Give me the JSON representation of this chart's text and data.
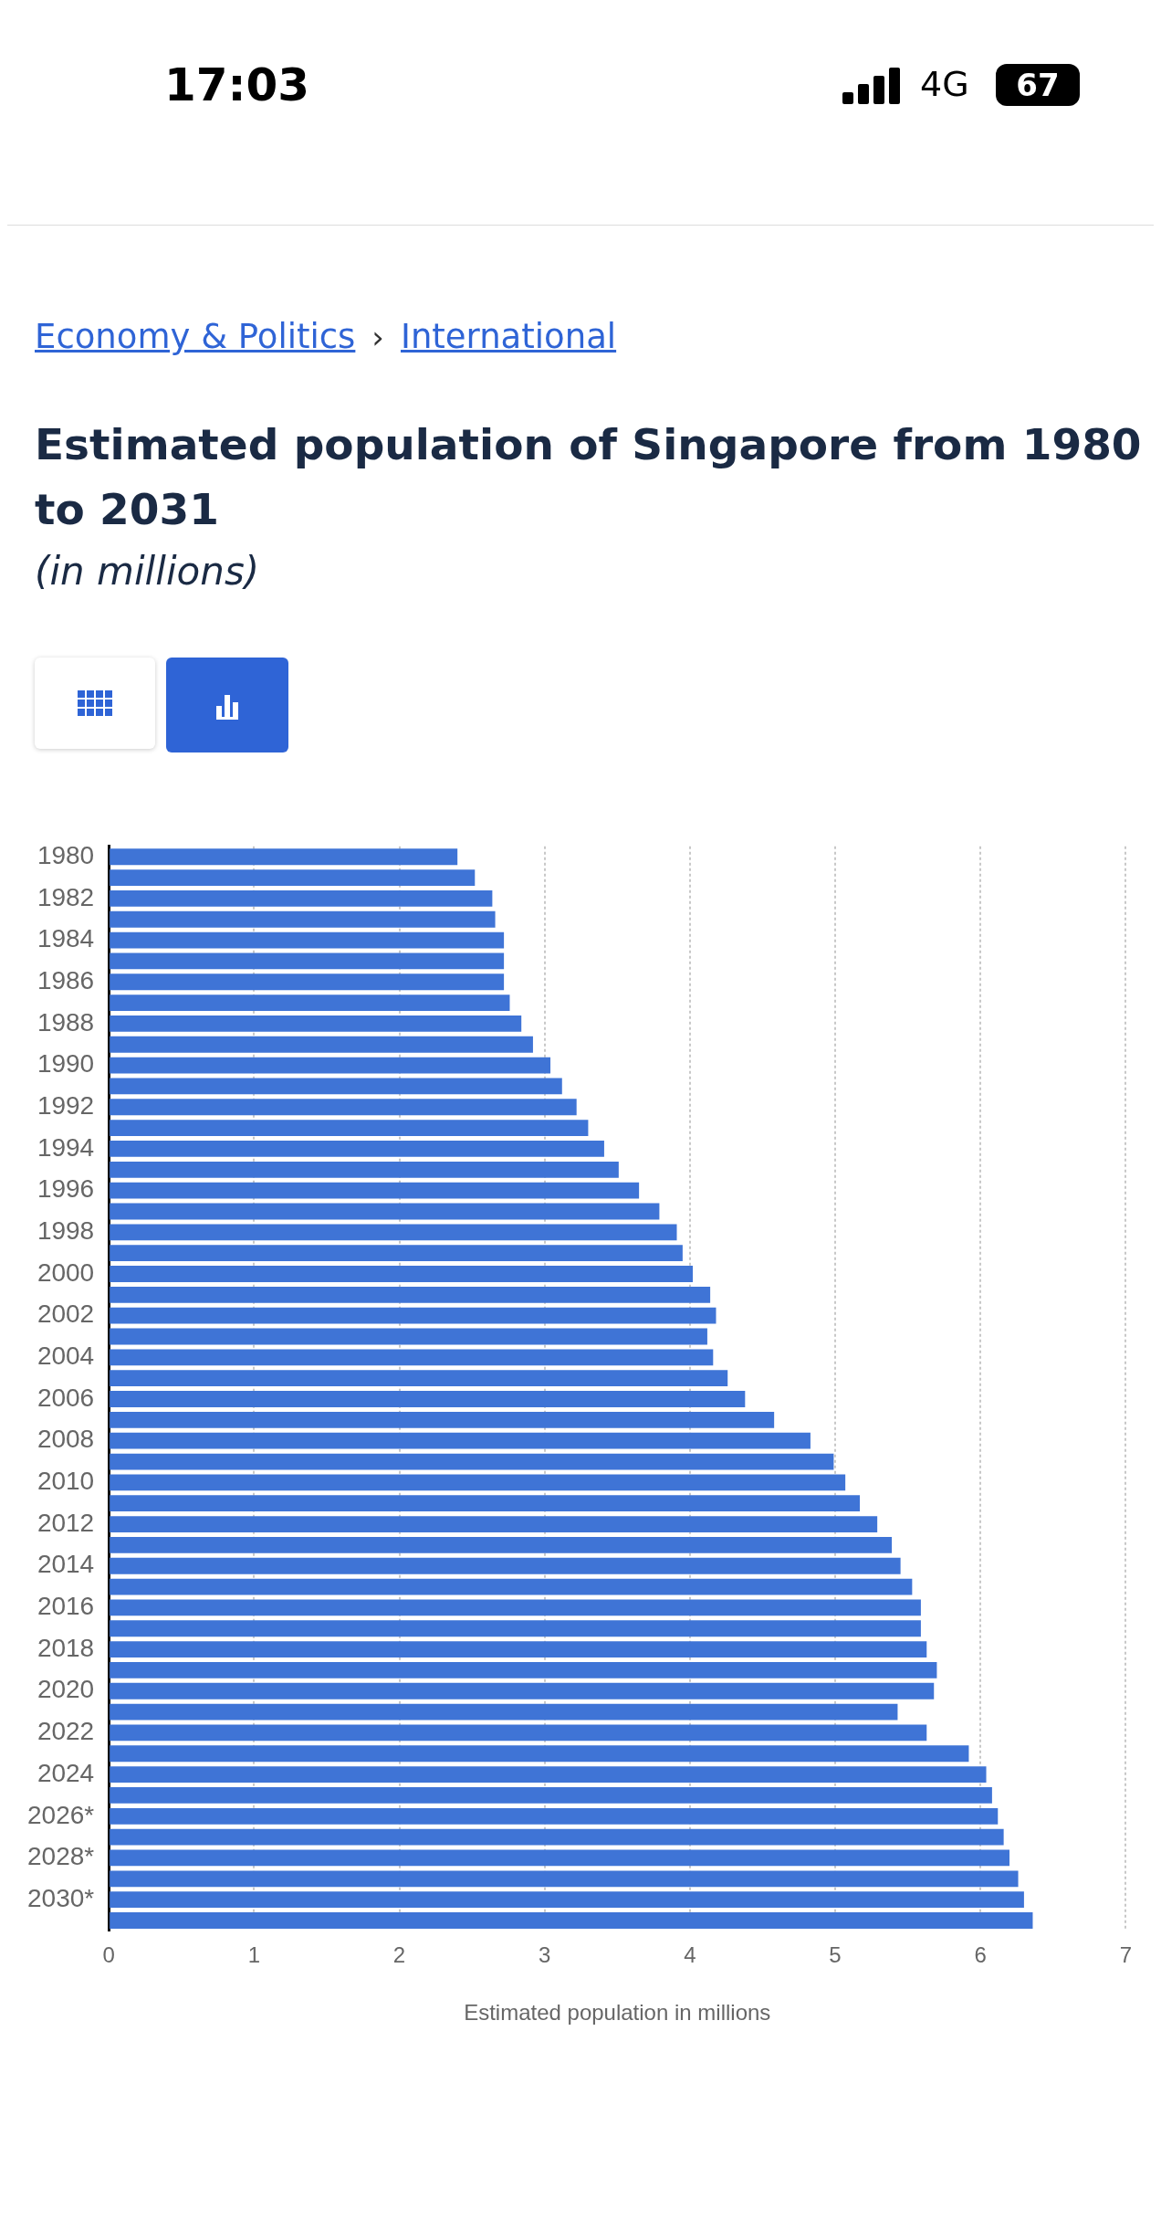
{
  "chart_data": {
    "type": "bar",
    "orientation": "horizontal",
    "title": "Estimated population of Singapore from 1980 to 2031",
    "subtitle": "(in millions)",
    "xlabel": "Estimated population in millions",
    "annotations": [
      "17:03",
      "4G",
      "67",
      "Economy & Politics",
      "›",
      "International"
    ],
    "categories": [
      "1980",
      null,
      "1982",
      null,
      "1984",
      null,
      "1986",
      null,
      "1988",
      null,
      "1990",
      null,
      "1992",
      null,
      "1994",
      null,
      "1996",
      null,
      "1998",
      null,
      "2000",
      null,
      "2002",
      null,
      "2004",
      null,
      "2006",
      null,
      "2008",
      null,
      "2010",
      null,
      "2012",
      null,
      "2014",
      null,
      "2016",
      null,
      "2018",
      null,
      "2020",
      null,
      "2022",
      null,
      "2024",
      null,
      "2026*",
      null,
      "2028*",
      null,
      "2030*",
      null
    ],
    "values": [
      2.4,
      2.52,
      2.64,
      2.66,
      2.72,
      2.72,
      2.72,
      2.76,
      2.84,
      2.92,
      3.04,
      3.12,
      3.22,
      3.3,
      3.41,
      3.51,
      3.65,
      3.79,
      3.91,
      3.95,
      4.02,
      4.14,
      4.18,
      4.12,
      4.16,
      4.26,
      4.38,
      4.58,
      4.83,
      4.99,
      5.07,
      5.17,
      5.29,
      5.39,
      5.45,
      5.53,
      5.59,
      5.59,
      5.63,
      5.7,
      5.68,
      5.43,
      5.63,
      5.92,
      6.04,
      6.08,
      6.12,
      6.16,
      6.2,
      6.26,
      6.3,
      6.36
    ],
    "color": "#3f74d6",
    "xlim": [
      0,
      7
    ],
    "xticks": [
      0,
      1,
      2,
      3,
      4,
      5,
      6,
      7
    ],
    "grid": "x",
    "legend": false
  }
}
